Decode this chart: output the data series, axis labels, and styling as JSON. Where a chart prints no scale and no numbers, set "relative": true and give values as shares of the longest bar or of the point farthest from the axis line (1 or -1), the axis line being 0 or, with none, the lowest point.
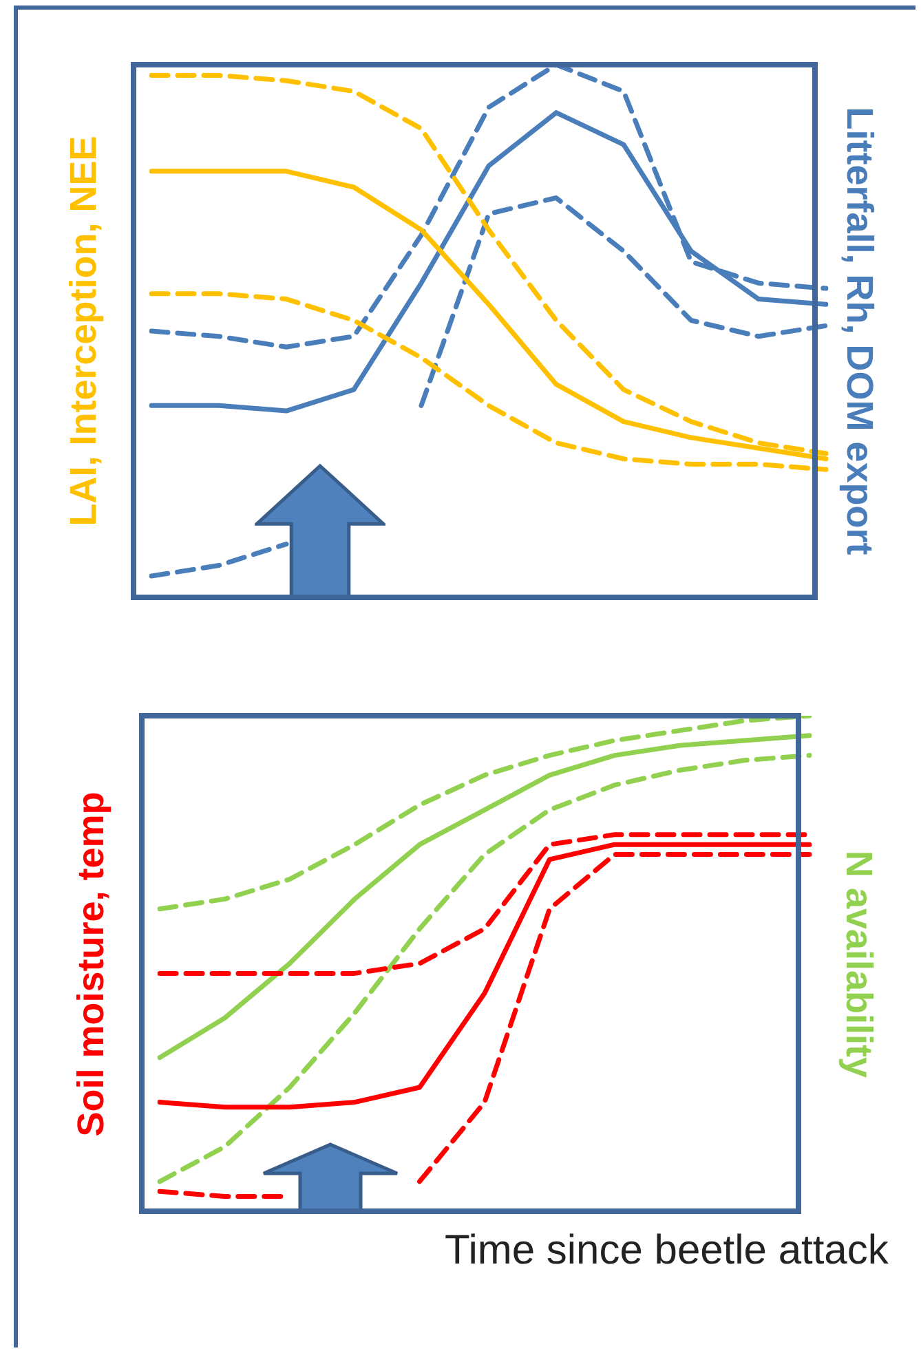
{
  "chart_data": [
    {
      "type": "line",
      "relative": true,
      "legend": false,
      "marker": "none",
      "ylabel": "LAI, Interception, NEE",
      "y2label": "Litterfall, Rh, DOM export",
      "categories": [
        null,
        null,
        null,
        null,
        null,
        null,
        null,
        null,
        null,
        null,
        null
      ],
      "series": [
        {
          "color": "#ffc000",
          "line_style": "dashed",
          "values": [
            0.98,
            0.98,
            0.97,
            0.95,
            0.88,
            0.69,
            0.52,
            0.39,
            0.33,
            0.29,
            0.27
          ]
        },
        {
          "color": "#ffc000",
          "line_style": "solid",
          "values": [
            0.8,
            0.8,
            0.8,
            0.77,
            0.69,
            0.55,
            0.4,
            0.33,
            0.3,
            0.28,
            0.26
          ]
        },
        {
          "color": "#ffc000",
          "line_style": "dashed",
          "values": [
            0.57,
            0.57,
            0.56,
            0.52,
            0.45,
            0.36,
            0.29,
            0.26,
            0.25,
            0.25,
            0.24
          ]
        },
        {
          "color": "#4a7ebb",
          "line_style": "dashed",
          "values": [
            0.5,
            0.49,
            0.47,
            0.49,
            0.68,
            0.92,
            1.0,
            0.95,
            0.63,
            0.59,
            0.58
          ]
        },
        {
          "color": "#4a7ebb",
          "line_style": "solid",
          "values": [
            0.36,
            0.36,
            0.35,
            0.39,
            0.59,
            0.81,
            0.91,
            0.85,
            0.65,
            0.56,
            0.55
          ]
        },
        {
          "color": "#4a7ebb",
          "line_style": "dashed",
          "values": [
            0.04,
            0.06,
            0.1,
            null,
            0.36,
            0.72,
            0.75,
            0.65,
            0.52,
            0.49,
            0.51
          ]
        }
      ]
    },
    {
      "type": "line",
      "relative": true,
      "legend": false,
      "marker": "none",
      "ylabel": "Soil moisture, temp",
      "y2label": "N availability",
      "xlabel": "Time since beetle attack",
      "categories": [
        null,
        null,
        null,
        null,
        null,
        null,
        null,
        null,
        null,
        null,
        null
      ],
      "series": [
        {
          "color": "#ff0000",
          "line_style": "dashed",
          "values": [
            0.48,
            0.48,
            0.48,
            0.48,
            0.5,
            0.57,
            0.74,
            0.76,
            0.76,
            0.76,
            0.76
          ]
        },
        {
          "color": "#ff0000",
          "line_style": "solid",
          "values": [
            0.22,
            0.21,
            0.21,
            0.22,
            0.25,
            0.44,
            0.71,
            0.74,
            0.74,
            0.74,
            0.74
          ]
        },
        {
          "color": "#ff0000",
          "line_style": "dashed",
          "values": [
            0.04,
            0.03,
            0.03,
            null,
            0.06,
            0.22,
            0.61,
            0.72,
            0.72,
            0.72,
            0.72
          ]
        },
        {
          "color": "#92d050",
          "line_style": "dashed",
          "values": [
            0.61,
            0.63,
            0.67,
            0.74,
            0.82,
            0.88,
            0.92,
            0.95,
            0.97,
            0.99,
            1.0
          ]
        },
        {
          "color": "#92d050",
          "line_style": "solid",
          "values": [
            0.31,
            0.39,
            0.5,
            0.63,
            0.74,
            0.81,
            0.88,
            0.92,
            0.94,
            0.95,
            0.96
          ]
        },
        {
          "color": "#92d050",
          "line_style": "dashed",
          "values": [
            0.06,
            0.13,
            0.25,
            0.4,
            0.57,
            0.72,
            0.81,
            0.86,
            0.89,
            0.91,
            0.92
          ]
        }
      ]
    }
  ]
}
